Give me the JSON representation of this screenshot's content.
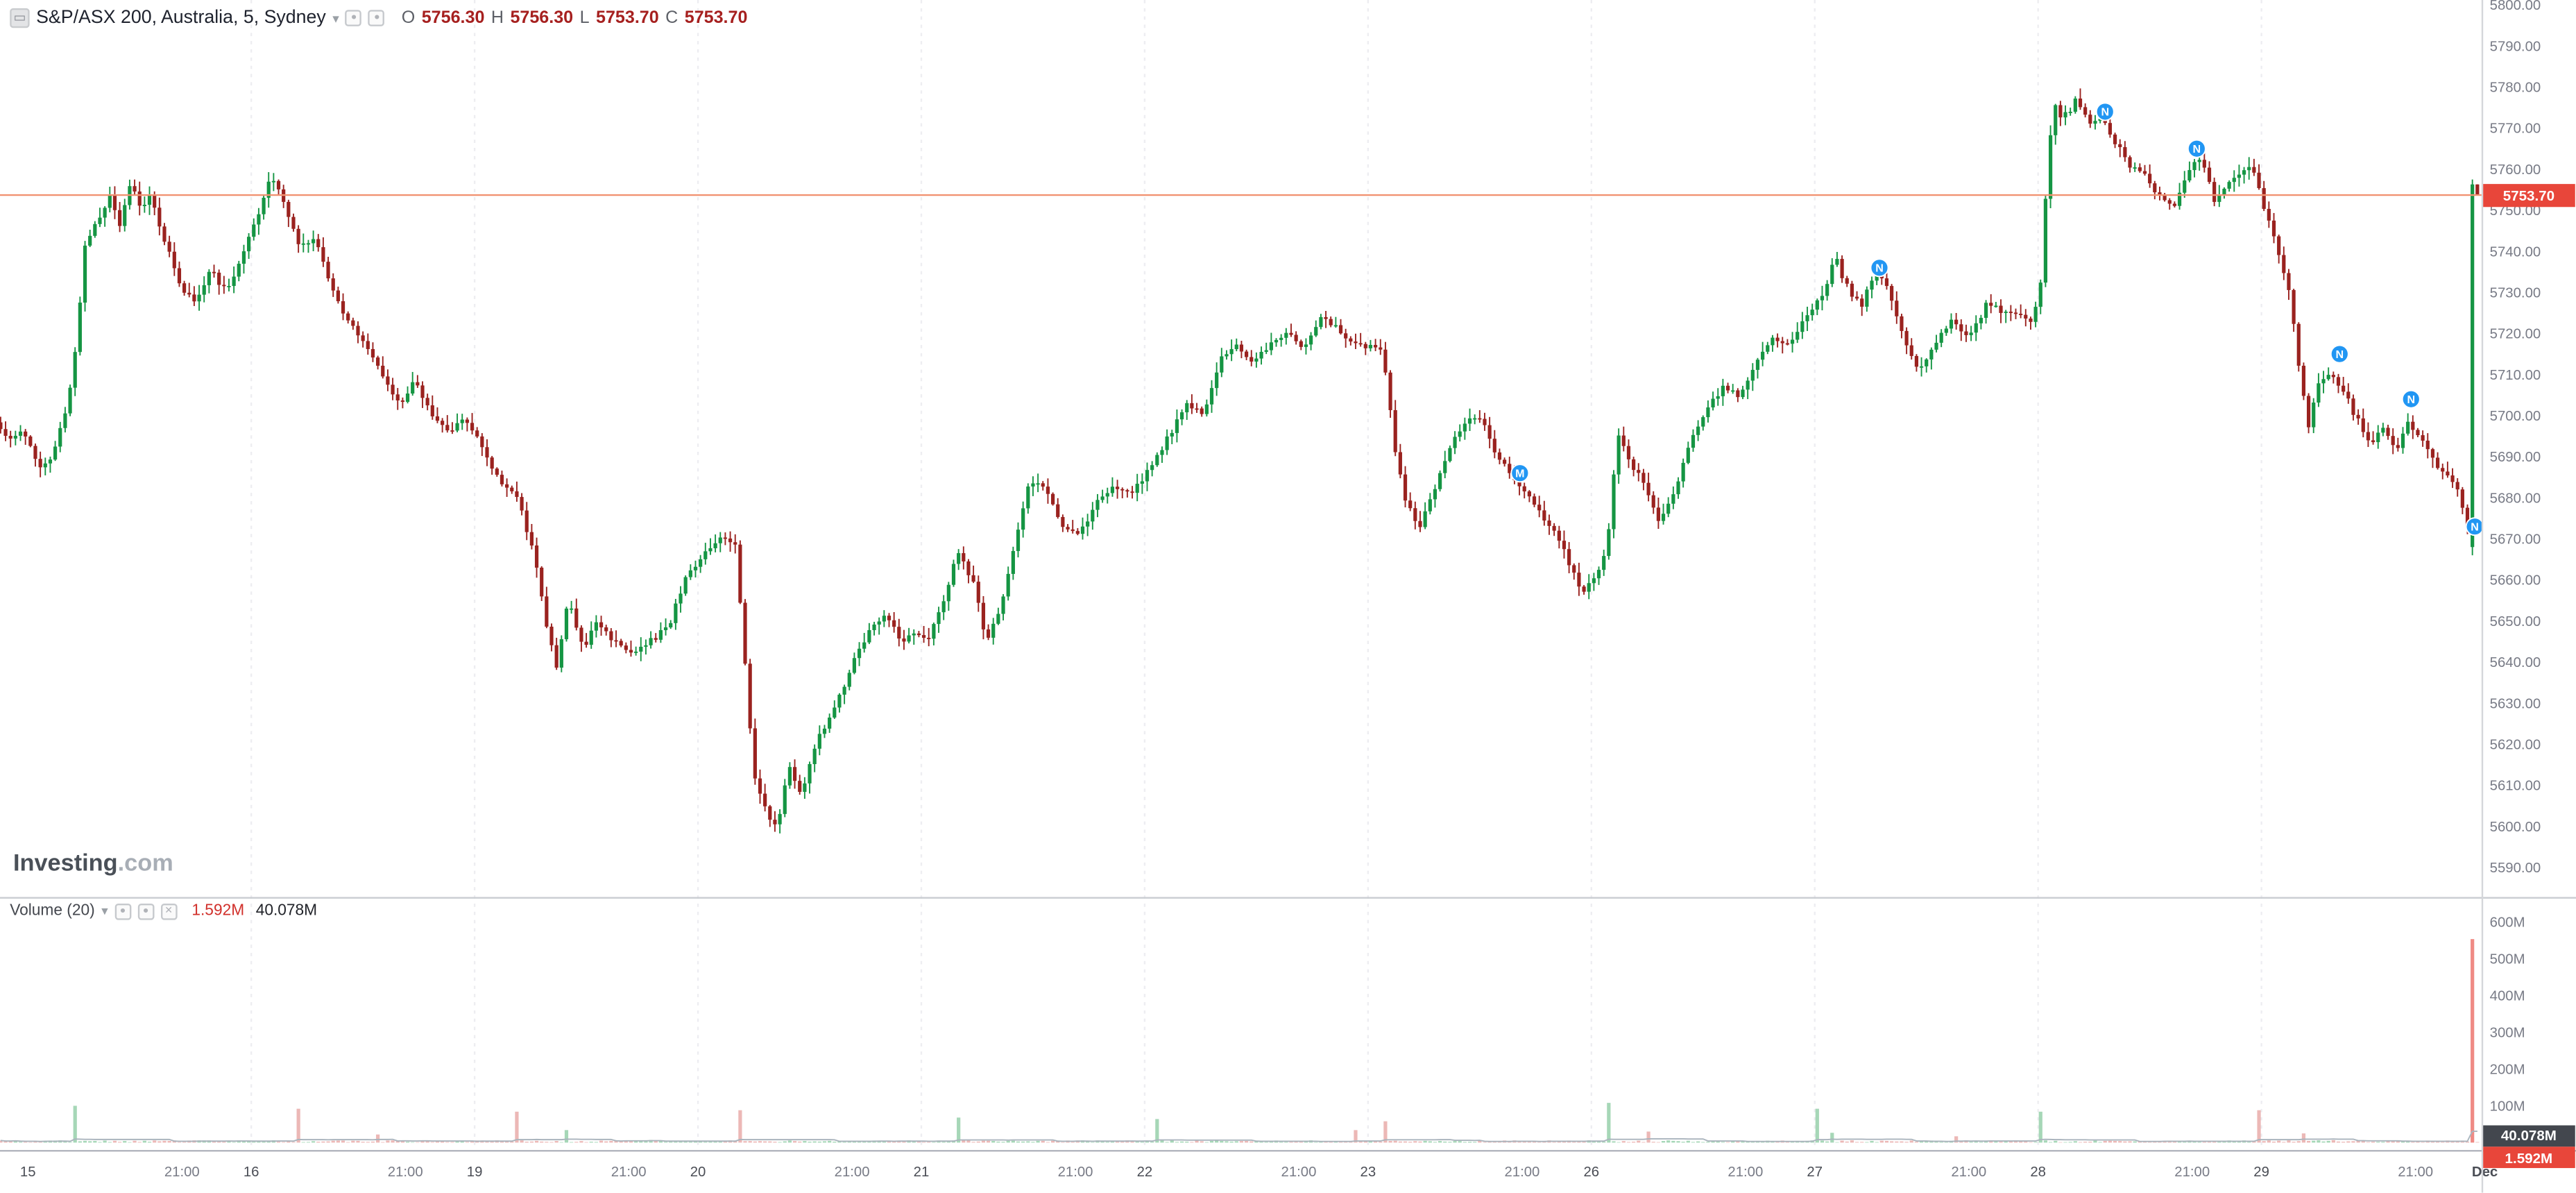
{
  "header": {
    "title": "S&P/ASX 200, Australia, 5, Sydney",
    "caret": "▾",
    "ohlc": {
      "o_label": "O",
      "o": "5756.30",
      "h_label": "H",
      "h": "5756.30",
      "l_label": "L",
      "l": "5753.70",
      "c_label": "C",
      "c": "5753.70"
    }
  },
  "watermark": {
    "bold": "Investing",
    "suffix": ".com"
  },
  "volume_legend": {
    "label": "Volume (20)",
    "current": "1.592M",
    "ma": "40.078M"
  },
  "axis_badges": {
    "price": "5753.70",
    "volume_ma": "40.078M",
    "volume_current": "1.592M"
  },
  "colors": {
    "up": "#159543",
    "down": "#9a221f",
    "vol_up": "rgba(21,149,67,0.38)",
    "vol_down": "rgba(204,68,64,0.38)",
    "vol_spike_final": "#ef8a84",
    "price_line": "#f19272",
    "badge_red": "#e8463a",
    "badge_dark": "#43474e",
    "marker_blue": "#2196f3",
    "axis_text": "#787b86",
    "time_major_text": "#4a4d55",
    "session_break": "#ededf1",
    "vol_ma_line": "#aab4bd"
  },
  "chart_data": {
    "type": "candlestick",
    "title": "S&P/ASX 200, Australia, 5, Sydney",
    "symbol": "S&P/ASX 200",
    "region": "Australia",
    "interval": "5",
    "session": "Sydney",
    "last_price": 5753.7,
    "last_bar": {
      "open": 5756.3,
      "high": 5756.3,
      "low": 5753.7,
      "close": 5753.7
    },
    "price_line": 5753.7,
    "price_axis": {
      "tick_values": [
        5800,
        5790,
        5780,
        5770,
        5760,
        5750,
        5740,
        5730,
        5720,
        5710,
        5700,
        5690,
        5680,
        5670,
        5660,
        5650,
        5640,
        5630,
        5620,
        5610,
        5600,
        5590
      ],
      "format_decimals": 2
    },
    "volume_axis": {
      "ticks": [
        {
          "value": 600,
          "label": "600M"
        },
        {
          "value": 500,
          "label": "500M"
        },
        {
          "value": 400,
          "label": "400M"
        },
        {
          "value": 300,
          "label": "300M"
        },
        {
          "value": 200,
          "label": "200M"
        },
        {
          "value": 100,
          "label": "100M"
        }
      ]
    },
    "time_axis": {
      "ticks": [
        {
          "t": 0,
          "label": "15",
          "major": true
        },
        {
          "t": 0.69,
          "label": "21:00"
        },
        {
          "t": 1,
          "label": "16",
          "major": true
        },
        {
          "t": 1.69,
          "label": "21:00"
        },
        {
          "t": 2,
          "label": "19",
          "major": true
        },
        {
          "t": 2.69,
          "label": "21:00"
        },
        {
          "t": 3,
          "label": "20",
          "major": true
        },
        {
          "t": 3.69,
          "label": "21:00"
        },
        {
          "t": 4,
          "label": "21",
          "major": true
        },
        {
          "t": 4.69,
          "label": "21:00"
        },
        {
          "t": 5,
          "label": "22",
          "major": true
        },
        {
          "t": 5.69,
          "label": "21:00"
        },
        {
          "t": 6,
          "label": "23",
          "major": true
        },
        {
          "t": 6.69,
          "label": "21:00"
        },
        {
          "t": 7,
          "label": "26",
          "major": true
        },
        {
          "t": 7.69,
          "label": "21:00"
        },
        {
          "t": 8,
          "label": "27",
          "major": true
        },
        {
          "t": 8.69,
          "label": "21:00"
        },
        {
          "t": 9,
          "label": "28",
          "major": true
        },
        {
          "t": 9.69,
          "label": "21:00"
        },
        {
          "t": 10,
          "label": "29",
          "major": true
        },
        {
          "t": 10.69,
          "label": "21:00"
        },
        {
          "t": 11,
          "label": "Dec",
          "major": true,
          "bold": true
        }
      ]
    },
    "bars_per_day": 45,
    "price_path": [
      [
        -0.15,
        5700
      ],
      [
        -0.08,
        5694
      ],
      [
        0.0,
        5696
      ],
      [
        0.06,
        5687
      ],
      [
        0.12,
        5690
      ],
      [
        0.18,
        5701
      ],
      [
        0.22,
        5714
      ],
      [
        0.27,
        5743
      ],
      [
        0.33,
        5748
      ],
      [
        0.38,
        5753
      ],
      [
        0.42,
        5746
      ],
      [
        0.47,
        5757
      ],
      [
        0.52,
        5750
      ],
      [
        0.56,
        5754
      ],
      [
        0.62,
        5743
      ],
      [
        0.7,
        5731
      ],
      [
        0.76,
        5727
      ],
      [
        0.83,
        5735
      ],
      [
        0.9,
        5730
      ],
      [
        0.97,
        5739
      ],
      [
        1.04,
        5749
      ],
      [
        1.1,
        5758
      ],
      [
        1.16,
        5752
      ],
      [
        1.22,
        5741
      ],
      [
        1.3,
        5743
      ],
      [
        1.37,
        5731
      ],
      [
        1.45,
        5722
      ],
      [
        1.52,
        5718
      ],
      [
        1.6,
        5709
      ],
      [
        1.68,
        5702
      ],
      [
        1.74,
        5709
      ],
      [
        1.82,
        5700
      ],
      [
        1.9,
        5696
      ],
      [
        1.97,
        5699
      ],
      [
        2.05,
        5692
      ],
      [
        2.12,
        5684
      ],
      [
        2.2,
        5681
      ],
      [
        2.28,
        5666
      ],
      [
        2.33,
        5649
      ],
      [
        2.38,
        5638
      ],
      [
        2.43,
        5655
      ],
      [
        2.5,
        5643
      ],
      [
        2.56,
        5650
      ],
      [
        2.63,
        5645
      ],
      [
        2.72,
        5642
      ],
      [
        2.8,
        5645
      ],
      [
        2.88,
        5649
      ],
      [
        2.96,
        5661
      ],
      [
        3.05,
        5667
      ],
      [
        3.12,
        5671
      ],
      [
        3.18,
        5668
      ],
      [
        3.22,
        5641
      ],
      [
        3.26,
        5613
      ],
      [
        3.31,
        5605
      ],
      [
        3.36,
        5599
      ],
      [
        3.42,
        5615
      ],
      [
        3.47,
        5608
      ],
      [
        3.55,
        5621
      ],
      [
        3.62,
        5629
      ],
      [
        3.7,
        5639
      ],
      [
        3.78,
        5648
      ],
      [
        3.85,
        5651
      ],
      [
        3.92,
        5645
      ],
      [
        3.98,
        5647
      ],
      [
        4.05,
        5646
      ],
      [
        4.12,
        5656
      ],
      [
        4.17,
        5667
      ],
      [
        4.25,
        5659
      ],
      [
        4.3,
        5644
      ],
      [
        4.38,
        5656
      ],
      [
        4.45,
        5673
      ],
      [
        4.5,
        5685
      ],
      [
        4.57,
        5681
      ],
      [
        4.65,
        5673
      ],
      [
        4.72,
        5671
      ],
      [
        4.8,
        5679
      ],
      [
        4.88,
        5683
      ],
      [
        4.96,
        5681
      ],
      [
        5.05,
        5689
      ],
      [
        5.12,
        5695
      ],
      [
        5.2,
        5703
      ],
      [
        5.28,
        5701
      ],
      [
        5.35,
        5714
      ],
      [
        5.42,
        5717
      ],
      [
        5.5,
        5713
      ],
      [
        5.58,
        5718
      ],
      [
        5.65,
        5721
      ],
      [
        5.72,
        5716
      ],
      [
        5.8,
        5724
      ],
      [
        5.88,
        5721
      ],
      [
        5.95,
        5717
      ],
      [
        6.03,
        5717
      ],
      [
        6.08,
        5715
      ],
      [
        6.13,
        5693
      ],
      [
        6.18,
        5679
      ],
      [
        6.24,
        5673
      ],
      [
        6.3,
        5681
      ],
      [
        6.38,
        5693
      ],
      [
        6.45,
        5699
      ],
      [
        6.52,
        5700
      ],
      [
        6.58,
        5691
      ],
      [
        6.65,
        5685
      ],
      [
        6.72,
        5681
      ],
      [
        6.8,
        5675
      ],
      [
        6.86,
        5671
      ],
      [
        6.92,
        5663
      ],
      [
        6.97,
        5657
      ],
      [
        7.04,
        5661
      ],
      [
        7.08,
        5668
      ],
      [
        7.13,
        5696
      ],
      [
        7.18,
        5689
      ],
      [
        7.25,
        5683
      ],
      [
        7.32,
        5674
      ],
      [
        7.38,
        5681
      ],
      [
        7.45,
        5693
      ],
      [
        7.52,
        5701
      ],
      [
        7.6,
        5707
      ],
      [
        7.68,
        5705
      ],
      [
        7.75,
        5713
      ],
      [
        7.82,
        5719
      ],
      [
        7.9,
        5717
      ],
      [
        7.97,
        5724
      ],
      [
        8.05,
        5729
      ],
      [
        8.1,
        5739
      ],
      [
        8.16,
        5731
      ],
      [
        8.22,
        5727
      ],
      [
        8.28,
        5735
      ],
      [
        8.34,
        5731
      ],
      [
        8.42,
        5717
      ],
      [
        8.48,
        5711
      ],
      [
        8.55,
        5717
      ],
      [
        8.62,
        5723
      ],
      [
        8.7,
        5719
      ],
      [
        8.78,
        5727
      ],
      [
        8.85,
        5725
      ],
      [
        8.92,
        5725
      ],
      [
        8.98,
        5723
      ],
      [
        9.02,
        5730
      ],
      [
        9.05,
        5758
      ],
      [
        9.08,
        5776
      ],
      [
        9.12,
        5772
      ],
      [
        9.18,
        5777
      ],
      [
        9.24,
        5771
      ],
      [
        9.3,
        5773
      ],
      [
        9.36,
        5766
      ],
      [
        9.42,
        5761
      ],
      [
        9.48,
        5759
      ],
      [
        9.55,
        5753
      ],
      [
        9.62,
        5751
      ],
      [
        9.68,
        5759
      ],
      [
        9.74,
        5763
      ],
      [
        9.8,
        5753
      ],
      [
        9.86,
        5757
      ],
      [
        9.92,
        5759
      ],
      [
        9.97,
        5761
      ],
      [
        10.03,
        5749
      ],
      [
        10.08,
        5741
      ],
      [
        10.14,
        5729
      ],
      [
        10.18,
        5712
      ],
      [
        10.22,
        5697
      ],
      [
        10.26,
        5707
      ],
      [
        10.32,
        5711
      ],
      [
        10.38,
        5706
      ],
      [
        10.44,
        5699
      ],
      [
        10.5,
        5693
      ],
      [
        10.56,
        5697
      ],
      [
        10.62,
        5691
      ],
      [
        10.67,
        5699
      ],
      [
        10.72,
        5695
      ],
      [
        10.78,
        5689
      ],
      [
        10.84,
        5685
      ],
      [
        10.89,
        5681
      ],
      [
        10.93,
        5673
      ],
      [
        10.96,
        5667
      ]
    ],
    "volume_profile": {
      "base_min": 1.2,
      "base_range": 5,
      "ma_period": 20,
      "spikes": [
        {
          "t": 0.23,
          "value": 100
        },
        {
          "t": 1.23,
          "value": 92
        },
        {
          "t": 2.21,
          "value": 84
        },
        {
          "t": 2.43,
          "value": 34
        },
        {
          "t": 3.21,
          "value": 88
        },
        {
          "t": 4.18,
          "value": 68
        },
        {
          "t": 5.07,
          "value": 64
        },
        {
          "t": 6.1,
          "value": 58
        },
        {
          "t": 7.1,
          "value": 108
        },
        {
          "t": 7.26,
          "value": 30
        },
        {
          "t": 8.03,
          "value": 92
        },
        {
          "t": 9.03,
          "value": 84
        },
        {
          "t": 10.01,
          "value": 88
        }
      ],
      "final_spike_value": 553,
      "last_bar_volume": 1.592
    },
    "markers": [
      {
        "t": 6.68,
        "price": 5686,
        "label": "M"
      },
      {
        "t": 8.29,
        "price": 5736,
        "label": "N"
      },
      {
        "t": 9.3,
        "price": 5774,
        "label": "N"
      },
      {
        "t": 9.71,
        "price": 5765,
        "label": "N"
      },
      {
        "t": 10.35,
        "price": 5715,
        "label": "N"
      },
      {
        "t": 10.67,
        "price": 5704,
        "label": "N"
      },
      {
        "t": 10.955,
        "price": 5673,
        "label": "N"
      }
    ]
  }
}
